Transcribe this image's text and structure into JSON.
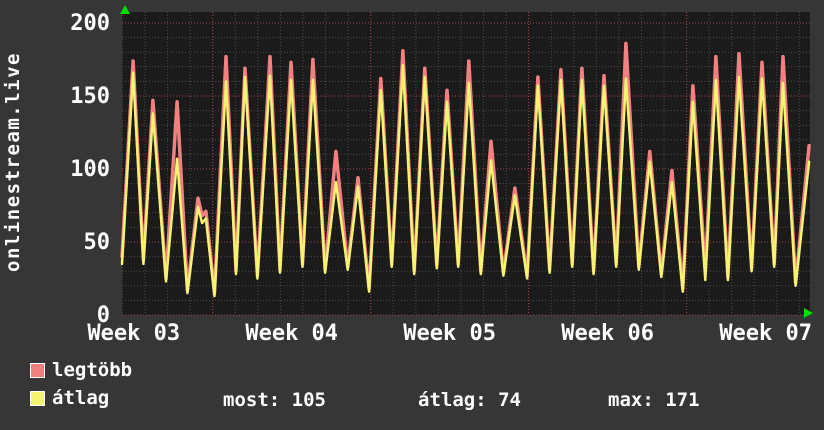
{
  "vertical_label": "onlinestream.live",
  "legend": {
    "items": [
      {
        "label": "legtöbb",
        "color": "#f08080"
      },
      {
        "label": "átlag",
        "color": "#f5f571"
      }
    ],
    "stats": [
      {
        "text": "most: 105"
      },
      {
        "text": "átlag: 74"
      },
      {
        "text": "max: 171"
      }
    ]
  },
  "chart_data": {
    "type": "line",
    "title": "",
    "xlabel": "",
    "ylabel": "",
    "y_axis": {
      "ticks": [
        0,
        50,
        100,
        150,
        200
      ],
      "minor_step": 10,
      "range": [
        0,
        207
      ]
    },
    "x_axis": {
      "labels": [
        "Week 03",
        "Week 04",
        "Week 05",
        "Week 06",
        "Week 07"
      ],
      "label_positions_days": [
        0.52,
        7.52,
        14.52,
        21.52,
        28.52
      ],
      "week_boundaries_days": [
        4.02,
        11.02,
        18.02,
        25.02
      ],
      "day_grid_offset": 0.02,
      "range_days": [
        0,
        30.5
      ]
    },
    "grid": {
      "minor_color": "#4b4b4b",
      "major_color": "#a84444",
      "plot_bg": "#1b1b1b",
      "outer_bg": "#363636",
      "axis_arrow_color": "#00dd00"
    },
    "series": [
      {
        "name": "legtöbb",
        "color": "#f28080",
        "width": 3.5,
        "points": [
          [
            0,
            40
          ],
          [
            0.49,
            174
          ],
          [
            0.95,
            38
          ],
          [
            1.37,
            147
          ],
          [
            1.95,
            25
          ],
          [
            2.44,
            146
          ],
          [
            2.9,
            17
          ],
          [
            3.37,
            80
          ],
          [
            3.55,
            68
          ],
          [
            3.72,
            71
          ],
          [
            4.1,
            15
          ],
          [
            4.61,
            177
          ],
          [
            5.05,
            30
          ],
          [
            5.45,
            169
          ],
          [
            6.0,
            27
          ],
          [
            6.56,
            177
          ],
          [
            7.0,
            31
          ],
          [
            7.49,
            173
          ],
          [
            8.0,
            35
          ],
          [
            8.46,
            175
          ],
          [
            9.0,
            31
          ],
          [
            9.48,
            112
          ],
          [
            10.0,
            33
          ],
          [
            10.46,
            94
          ],
          [
            10.95,
            18
          ],
          [
            11.47,
            162
          ],
          [
            11.95,
            35
          ],
          [
            12.45,
            181
          ],
          [
            12.95,
            30
          ],
          [
            13.42,
            169
          ],
          [
            13.95,
            34
          ],
          [
            14.4,
            154
          ],
          [
            14.9,
            35
          ],
          [
            15.37,
            174
          ],
          [
            15.9,
            30
          ],
          [
            16.35,
            119
          ],
          [
            16.9,
            29
          ],
          [
            17.41,
            87
          ],
          [
            17.95,
            27
          ],
          [
            18.43,
            163
          ],
          [
            18.95,
            31
          ],
          [
            19.45,
            168
          ],
          [
            19.95,
            35
          ],
          [
            20.38,
            169
          ],
          [
            20.9,
            30
          ],
          [
            21.36,
            164
          ],
          [
            21.9,
            35
          ],
          [
            22.33,
            186
          ],
          [
            22.9,
            33
          ],
          [
            23.39,
            112
          ],
          [
            23.9,
            28
          ],
          [
            24.37,
            99
          ],
          [
            24.85,
            18
          ],
          [
            25.3,
            157
          ],
          [
            25.85,
            30
          ],
          [
            26.32,
            177
          ],
          [
            26.85,
            26
          ],
          [
            27.34,
            179
          ],
          [
            27.9,
            32
          ],
          [
            28.36,
            173
          ],
          [
            28.9,
            35
          ],
          [
            29.29,
            177
          ],
          [
            29.85,
            22
          ],
          [
            30.45,
            116
          ]
        ]
      },
      {
        "name": "átlag",
        "color": "#f5f470",
        "width": 2.5,
        "points": [
          [
            0,
            35
          ],
          [
            0.49,
            166
          ],
          [
            0.95,
            35
          ],
          [
            1.37,
            138
          ],
          [
            1.95,
            23
          ],
          [
            2.44,
            107
          ],
          [
            2.9,
            15
          ],
          [
            3.37,
            74
          ],
          [
            3.55,
            63
          ],
          [
            3.72,
            66
          ],
          [
            4.1,
            13
          ],
          [
            4.61,
            160
          ],
          [
            5.05,
            28
          ],
          [
            5.45,
            163
          ],
          [
            6.0,
            25
          ],
          [
            6.56,
            164
          ],
          [
            7.0,
            29
          ],
          [
            7.49,
            161
          ],
          [
            8.0,
            33
          ],
          [
            8.46,
            161
          ],
          [
            9.0,
            29
          ],
          [
            9.48,
            91
          ],
          [
            10.0,
            31
          ],
          [
            10.46,
            88
          ],
          [
            10.95,
            16
          ],
          [
            11.47,
            154
          ],
          [
            11.95,
            33
          ],
          [
            12.45,
            171
          ],
          [
            12.95,
            28
          ],
          [
            13.42,
            163
          ],
          [
            13.95,
            32
          ],
          [
            14.4,
            146
          ],
          [
            14.9,
            33
          ],
          [
            15.37,
            159
          ],
          [
            15.9,
            28
          ],
          [
            16.35,
            106
          ],
          [
            16.9,
            27
          ],
          [
            17.41,
            82
          ],
          [
            17.95,
            25
          ],
          [
            18.43,
            157
          ],
          [
            18.95,
            29
          ],
          [
            19.45,
            161
          ],
          [
            19.95,
            33
          ],
          [
            20.38,
            161
          ],
          [
            20.9,
            28
          ],
          [
            21.36,
            157
          ],
          [
            21.9,
            33
          ],
          [
            22.33,
            162
          ],
          [
            22.9,
            31
          ],
          [
            23.39,
            105
          ],
          [
            23.9,
            26
          ],
          [
            24.37,
            91
          ],
          [
            24.85,
            16
          ],
          [
            25.3,
            146
          ],
          [
            25.85,
            24
          ],
          [
            26.32,
            161
          ],
          [
            26.85,
            24
          ],
          [
            27.34,
            163
          ],
          [
            27.9,
            30
          ],
          [
            28.36,
            162
          ],
          [
            28.9,
            33
          ],
          [
            29.29,
            159
          ],
          [
            29.85,
            20
          ],
          [
            30.45,
            105
          ]
        ]
      }
    ],
    "legend_note": "most: 105 | átlag: 74 | max: 171"
  }
}
